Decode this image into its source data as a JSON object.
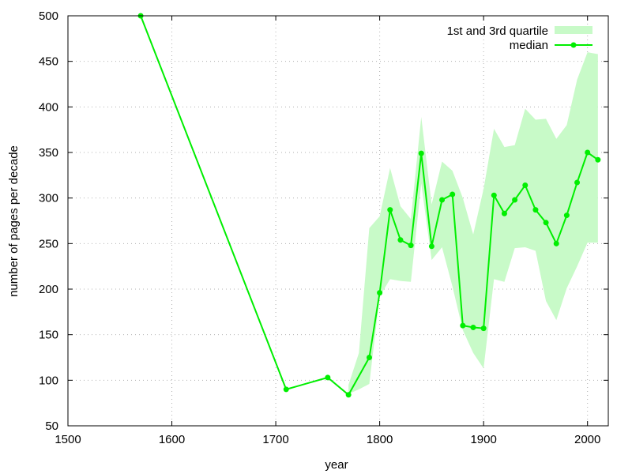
{
  "chart_data": {
    "type": "line",
    "title": "",
    "xlabel": "year",
    "ylabel": "number of pages per decade",
    "xlim": [
      1500,
      2020
    ],
    "ylim": [
      50,
      500
    ],
    "xticks": [
      1500,
      1600,
      1700,
      1800,
      1900,
      2000
    ],
    "yticks": [
      50,
      100,
      150,
      200,
      250,
      300,
      350,
      400,
      450,
      500
    ],
    "grid": true,
    "legend_position": "top-right",
    "colors": {
      "median": "#00ee00",
      "quartile_fill": "#c8fac8"
    },
    "series": [
      {
        "name": "1st and 3rd quartile",
        "kind": "band",
        "x": [
          1770,
          1780,
          1790,
          1800,
          1810,
          1820,
          1830,
          1840,
          1850,
          1860,
          1870,
          1880,
          1890,
          1900,
          1910,
          1920,
          1930,
          1940,
          1950,
          1960,
          1970,
          1980,
          1990,
          2000,
          2010
        ],
        "low": [
          85,
          90,
          96,
          192,
          211,
          209,
          208,
          316,
          232,
          246,
          203,
          155,
          130,
          113,
          211,
          208,
          245,
          246,
          242,
          187,
          166,
          201,
          225,
          251,
          251
        ],
        "high": [
          95,
          130,
          267,
          280,
          333,
          291,
          277,
          389,
          293,
          340,
          330,
          300,
          260,
          310,
          376,
          356,
          358,
          398,
          386,
          387,
          365,
          380,
          430,
          460,
          458
        ]
      },
      {
        "name": "median",
        "kind": "line",
        "x": [
          1570,
          1710,
          1750,
          1770,
          1790,
          1800,
          1810,
          1820,
          1830,
          1840,
          1850,
          1860,
          1870,
          1880,
          1890,
          1900,
          1910,
          1920,
          1930,
          1940,
          1950,
          1960,
          1970,
          1980,
          1990,
          2000,
          2010
        ],
        "y": [
          500,
          90,
          103,
          84,
          125,
          196,
          287,
          254,
          248,
          349,
          247,
          298,
          304,
          160,
          158,
          157,
          303,
          283,
          298,
          314,
          287,
          273,
          250,
          281,
          317,
          350,
          342
        ]
      }
    ]
  }
}
